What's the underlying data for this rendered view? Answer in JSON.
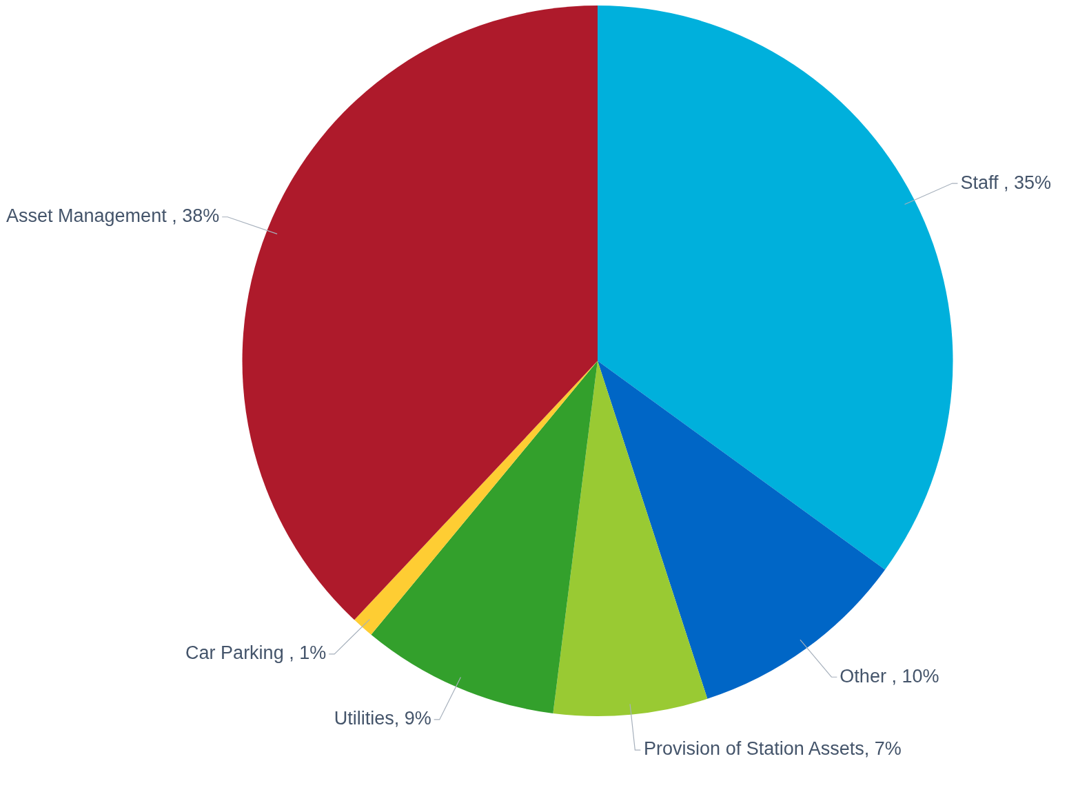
{
  "chart_data": {
    "type": "pie",
    "categories": [
      "Staff ",
      "Other ",
      "Provision of Station Assets",
      "Utilities",
      "Car Parking ",
      "Asset Management "
    ],
    "values": [
      35,
      10,
      7,
      9,
      1,
      38
    ],
    "value_labels": [
      "35%",
      "10%",
      "7%",
      "9%",
      "1%",
      "38%"
    ],
    "colors": [
      "#00b0dc",
      "#0066c6",
      "#99ca33",
      "#33a02c",
      "#fecd33",
      "#ae1a2b"
    ],
    "legend": false
  }
}
